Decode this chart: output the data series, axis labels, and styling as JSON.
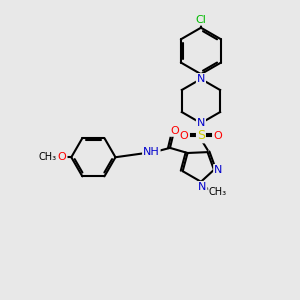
{
  "bg_color": "#e8e8e8",
  "atom_colors": {
    "C": "#000000",
    "N": "#0000cc",
    "O": "#ff0000",
    "S": "#cccc00",
    "Cl": "#00bb00",
    "H": "#000000"
  },
  "bond_color": "#000000",
  "bond_width": 1.5,
  "label_fontsize": 8.0,
  "label_fontsize_small": 7.0,
  "xlim": [
    0.0,
    10.0
  ],
  "ylim": [
    0.0,
    10.5
  ]
}
